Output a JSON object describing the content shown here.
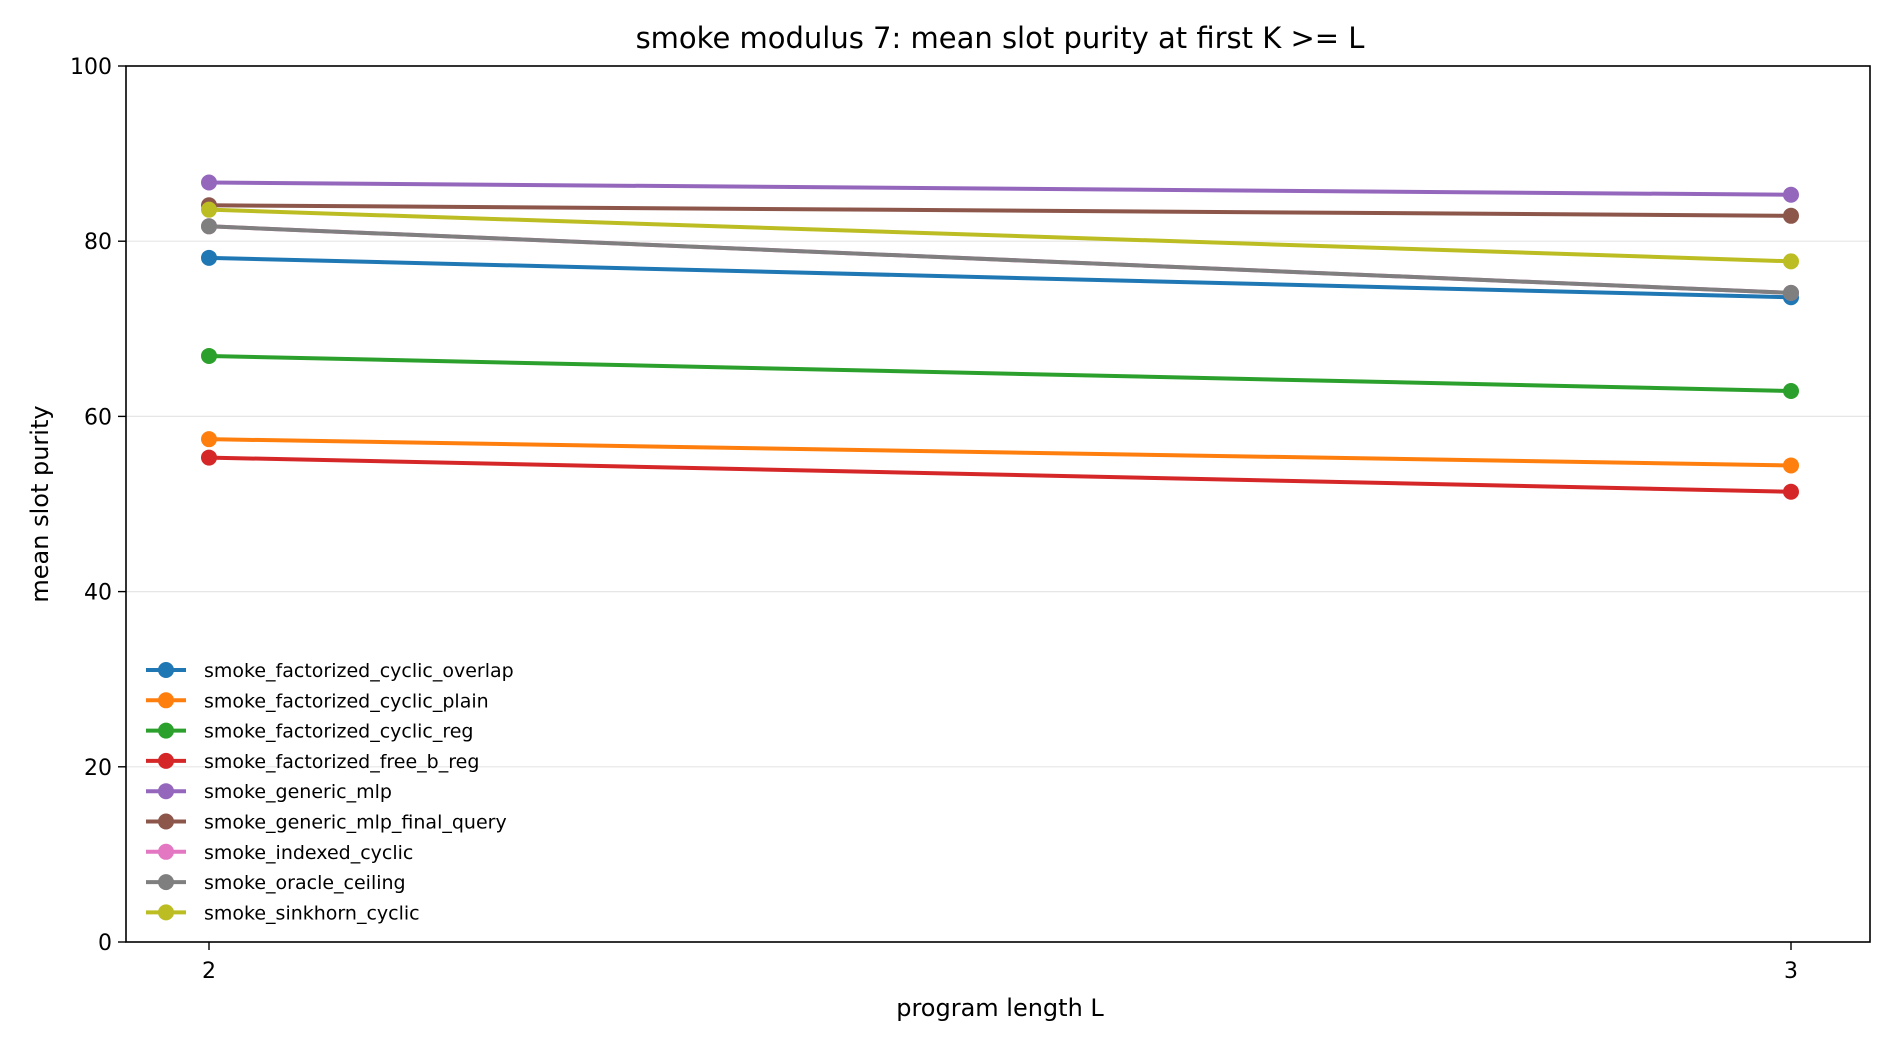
{
  "chart_data": {
    "type": "line",
    "title": "smoke modulus 7: mean slot purity at first K >= L",
    "xlabel": "program length L",
    "ylabel": "mean slot purity",
    "x": [
      2,
      3
    ],
    "x_tick_labels": [
      "2",
      "3"
    ],
    "ylim": [
      0,
      100
    ],
    "y_ticks": [
      0,
      20,
      40,
      60,
      80,
      100
    ],
    "y_tick_labels": [
      "0",
      "20",
      "40",
      "60",
      "80",
      "100"
    ],
    "grid": "horizontal",
    "legend_position": "lower-left",
    "series": [
      {
        "name": "smoke_factorized_cyclic_overlap",
        "color": "#1f77b4",
        "values": [
          78.1,
          73.6
        ]
      },
      {
        "name": "smoke_factorized_cyclic_plain",
        "color": "#ff7f0e",
        "values": [
          57.4,
          54.4
        ]
      },
      {
        "name": "smoke_factorized_cyclic_reg",
        "color": "#2ca02c",
        "values": [
          66.9,
          62.9
        ]
      },
      {
        "name": "smoke_factorized_free_b_reg",
        "color": "#d62728",
        "values": [
          55.3,
          51.4
        ]
      },
      {
        "name": "smoke_generic_mlp",
        "color": "#9467bd",
        "values": [
          86.7,
          85.3
        ]
      },
      {
        "name": "smoke_generic_mlp_final_query",
        "color": "#8c564b",
        "values": [
          84.1,
          82.9
        ]
      },
      {
        "name": "smoke_indexed_cyclic",
        "color": "#e377c2",
        "values": [
          81.7,
          74.1
        ]
      },
      {
        "name": "smoke_oracle_ceiling",
        "color": "#7f7f7f",
        "values": [
          81.7,
          74.1
        ]
      },
      {
        "name": "smoke_sinkhorn_cyclic",
        "color": "#bcbd22",
        "values": [
          83.6,
          77.7
        ]
      }
    ]
  }
}
